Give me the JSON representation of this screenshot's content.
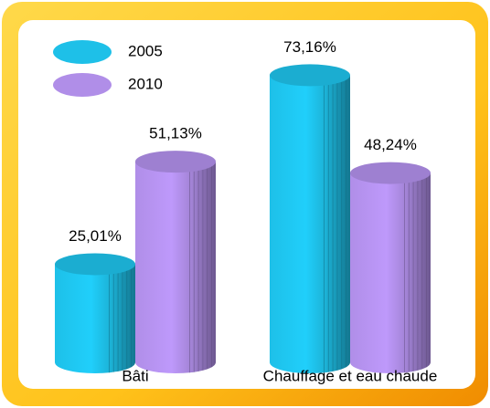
{
  "chart_data": {
    "type": "cylinder-bar",
    "categories": [
      "Bâti",
      "Chauffage et eau chaude"
    ],
    "series": [
      {
        "name": "2005",
        "color": "#1ec0e8",
        "values": [
          25.01,
          73.16
        ],
        "value_labels": [
          "25,01%",
          "73,16%"
        ]
      },
      {
        "name": "2010",
        "color": "#b08ee8",
        "values": [
          51.13,
          48.24
        ],
        "value_labels": [
          "51,13%",
          "48,24%"
        ]
      }
    ],
    "legend": "top-left"
  }
}
